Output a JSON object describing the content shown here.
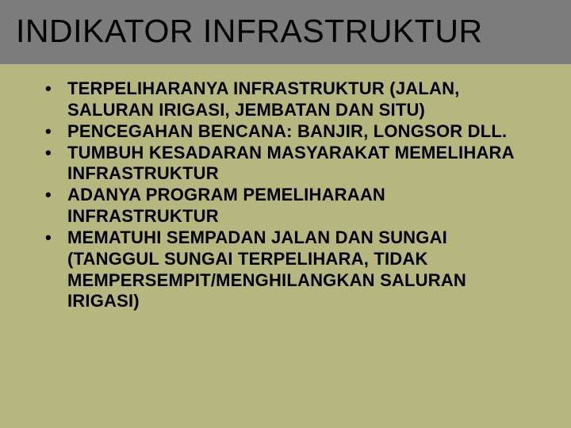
{
  "slide": {
    "background_color": "#b6b77e",
    "title": {
      "text": "INDIKATOR INFRASTRUKTUR",
      "bar_color": "#7c7c7c",
      "text_color": "#000000",
      "fontsize": 41
    },
    "bullets": [
      "TERPELIHARANYA INFRASTRUKTUR (JALAN, SALURAN IRIGASI, JEMBATAN DAN SITU)",
      "PENCEGAHAN BENCANA: BANJIR, LONGSOR DLL.",
      "TUMBUH KESADARAN MASYARAKAT MEMELIHARA INFRASTRUKTUR",
      "ADANYA PROGRAM PEMELIHARAAN INFRASTRUKTUR",
      "MEMATUHI SEMPADAN JALAN DAN SUNGAI (TANGGUL SUNGAI TERPELIHARA, TIDAK MEMPERSEMPIT/MENGHILANGKAN SALURAN IRIGASI)"
    ],
    "bullet_text_color": "#000000",
    "bullet_fontsize": 22
  }
}
